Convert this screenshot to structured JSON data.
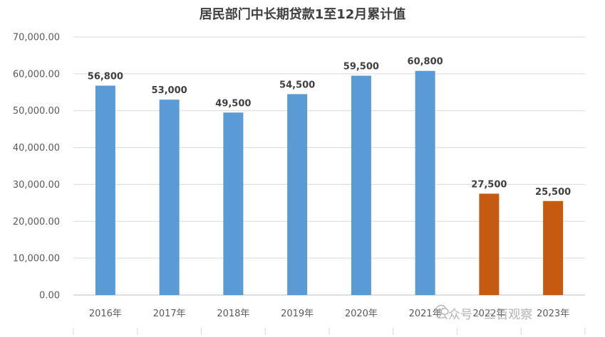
{
  "chart_data": {
    "type": "bar",
    "title": "居民部门中长期贷款1至12月累计值",
    "categories": [
      "2016年",
      "2017年",
      "2018年",
      "2019年",
      "2020年",
      "2021年",
      "2022年",
      "2023年"
    ],
    "values": [
      56800,
      53000,
      49500,
      54500,
      59500,
      60800,
      27500,
      25500
    ],
    "data_labels": [
      "56,800",
      "53,000",
      "49,500",
      "54,500",
      "59,500",
      "60,800",
      "27,500",
      "25,500"
    ],
    "bar_colors": [
      "#5b9bd5",
      "#5b9bd5",
      "#5b9bd5",
      "#5b9bd5",
      "#5b9bd5",
      "#5b9bd5",
      "#c55a11",
      "#c55a11"
    ],
    "ylim": [
      0,
      70000
    ],
    "yticks": [
      "0.00",
      "10,000.00",
      "20,000.00",
      "30,000.00",
      "40,000.00",
      "50,000.00",
      "60,000.00",
      "70,000.00"
    ],
    "grid": true,
    "xlabel": "",
    "ylabel": ""
  },
  "watermark": {
    "text": "公众号 · 三百观察",
    "icon": "wechat-icon"
  }
}
